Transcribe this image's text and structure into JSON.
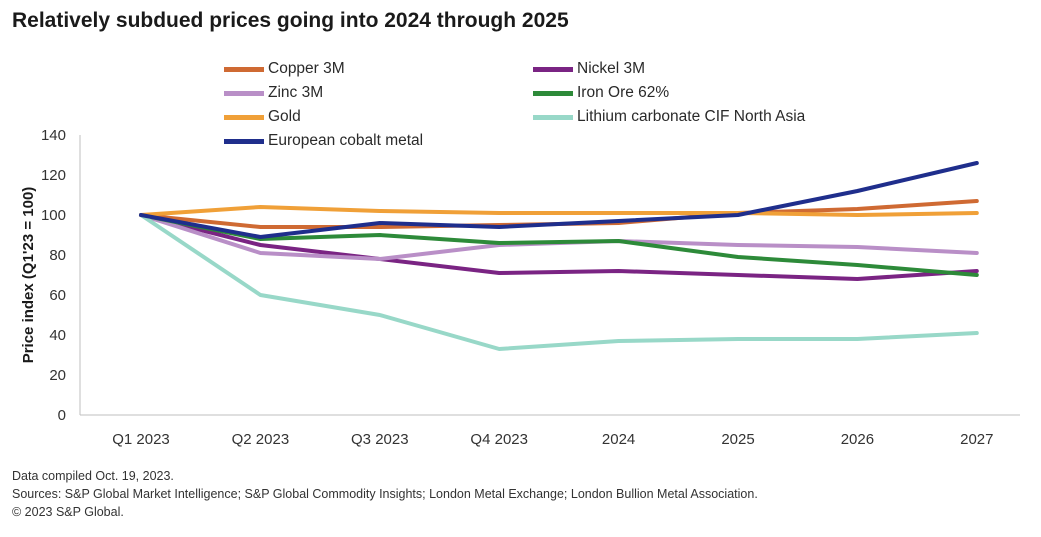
{
  "chart_data": {
    "type": "line",
    "title": "Relatively subdued prices going into 2024 through 2025",
    "xlabel": "",
    "ylabel": "Price index (Q1'23 = 100)",
    "ylim": [
      0,
      140
    ],
    "yticks": [
      0,
      20,
      40,
      60,
      80,
      100,
      120,
      140
    ],
    "categories": [
      "Q1 2023",
      "Q2 2023",
      "Q3 2023",
      "Q4 2023",
      "2024",
      "2025",
      "2026",
      "2027"
    ],
    "series": [
      {
        "name": "Copper 3M",
        "color": "#cf6a33",
        "values": [
          100,
          94,
          94,
          95,
          96,
          101,
          103,
          107
        ]
      },
      {
        "name": "Nickel 3M",
        "color": "#7a2483",
        "values": [
          100,
          85,
          78,
          71,
          72,
          70,
          68,
          72
        ]
      },
      {
        "name": "Zinc 3M",
        "color": "#b98fc7",
        "values": [
          100,
          81,
          78,
          85,
          87,
          85,
          84,
          81
        ]
      },
      {
        "name": "Iron Ore 62%",
        "color": "#2d8a39",
        "values": [
          100,
          88,
          90,
          86,
          87,
          79,
          75,
          70
        ]
      },
      {
        "name": "Gold",
        "color": "#f0a038",
        "values": [
          100,
          104,
          102,
          101,
          101,
          101,
          100,
          101
        ]
      },
      {
        "name": "Lithium carbonate CIF North Asia",
        "color": "#98d8c8",
        "values": [
          100,
          60,
          50,
          33,
          37,
          38,
          38,
          41
        ]
      },
      {
        "name": "European cobalt metal",
        "color": "#1f2e8c",
        "values": [
          100,
          89,
          96,
          94,
          97,
          100,
          112,
          126
        ]
      }
    ],
    "legend_position": "top"
  },
  "footer": {
    "line1": "Data compiled Oct. 19, 2023.",
    "line2": "Sources: S&P Global Market Intelligence;  S&P Global Commodity Insights; London Metal Exchange; London Bullion Metal Association.",
    "line3": "© 2023 S&P Global."
  }
}
